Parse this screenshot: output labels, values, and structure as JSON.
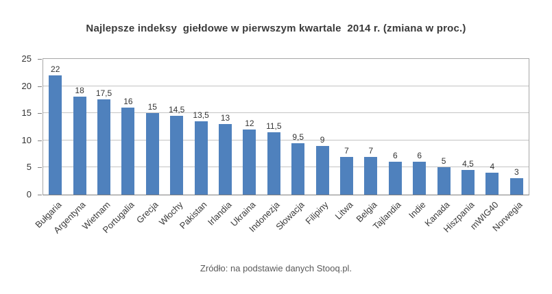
{
  "chart_data": {
    "type": "bar",
    "title": "Najlepsze indeksy  giełdowe w pierwszym kwartale  2014 r. (zmiana w proc.)",
    "source": "Zródło: na podstawie danych Stooq.pl.",
    "categories": [
      "Bułgaria",
      "Argentyna",
      "Wietnam",
      "Portugalia",
      "Grecja",
      "Włochy",
      "Pakistan",
      "Irlandia",
      "Ukraina",
      "Indonezja",
      "Słowacja",
      "Filipiny",
      "Litwa",
      "Belgia",
      "Tajlandia",
      "Indie",
      "Kanada",
      "Hiszpania",
      "mWIG40",
      "Norwegia"
    ],
    "values": [
      22,
      18,
      17.5,
      16,
      15,
      14.5,
      13.5,
      13,
      12,
      11.5,
      9.5,
      9,
      7,
      7,
      6,
      6,
      5,
      4.5,
      4,
      3
    ],
    "value_labels": [
      "22",
      "18",
      "17,5",
      "16",
      "15",
      "14,5",
      "13,5",
      "13",
      "12",
      "11,5",
      "9,5",
      "9",
      "7",
      "7",
      "6",
      "6",
      "5",
      "4,5",
      "4",
      "3"
    ],
    "xlabel": "",
    "ylabel": "",
    "ylim": [
      0,
      25
    ],
    "yticks": [
      0,
      5,
      10,
      15,
      20,
      25
    ],
    "grid": true,
    "legend": false,
    "bar_color": "#4f81bd",
    "gridline_color": "#c3c3c3",
    "axis_color": "#7f7f7f",
    "text_color": "#333333"
  }
}
